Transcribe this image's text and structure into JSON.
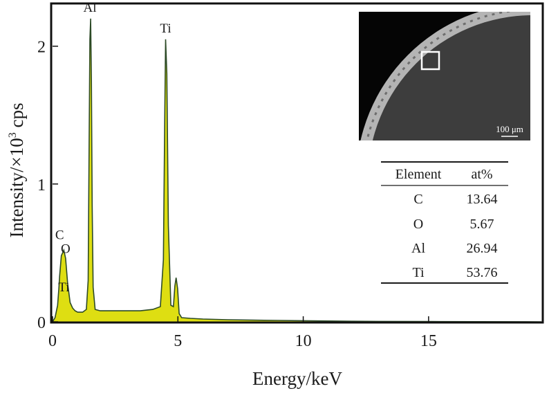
{
  "chart_data": {
    "type": "line",
    "xlabel": "Energy/keV",
    "ylabel_main": "Intensity/×10",
    "ylabel_sup": "3",
    "ylabel_tail": " cps",
    "xlim": [
      0,
      19.5
    ],
    "ylim": [
      0,
      2.3
    ],
    "xticks": [
      0,
      5,
      10,
      15
    ],
    "yticks": [
      0,
      1,
      2
    ],
    "fill_color": "#dede12",
    "line_color": "#2c4a26",
    "grid": false,
    "spectrum": {
      "x": [
        0,
        0.1,
        0.2,
        0.25,
        0.28,
        0.35,
        0.45,
        0.52,
        0.6,
        0.7,
        0.8,
        0.9,
        1.0,
        1.2,
        1.35,
        1.42,
        1.46,
        1.49,
        1.52,
        1.55,
        1.58,
        1.62,
        1.7,
        1.9,
        2.2,
        2.6,
        3.0,
        3.5,
        4.0,
        4.3,
        4.42,
        4.48,
        4.51,
        4.56,
        4.62,
        4.72,
        4.82,
        4.88,
        4.93,
        4.99,
        5.05,
        5.15,
        5.5,
        6.0,
        7.0,
        8.0,
        9.0,
        10.0,
        11.0,
        12.0,
        13.0,
        15.0,
        17.0,
        19.5
      ],
      "y": [
        0.0,
        0.03,
        0.12,
        0.24,
        0.33,
        0.48,
        0.52,
        0.46,
        0.28,
        0.14,
        0.1,
        0.08,
        0.07,
        0.07,
        0.09,
        0.3,
        1.3,
        2.05,
        2.2,
        1.75,
        0.85,
        0.25,
        0.09,
        0.08,
        0.08,
        0.08,
        0.08,
        0.08,
        0.09,
        0.11,
        0.45,
        1.55,
        2.05,
        1.8,
        0.7,
        0.12,
        0.11,
        0.26,
        0.32,
        0.24,
        0.06,
        0.03,
        0.025,
        0.02,
        0.015,
        0.012,
        0.01,
        0.008,
        0.006,
        0.004,
        0.003,
        0.002,
        0.001,
        0.0
      ]
    },
    "peak_labels": [
      {
        "text": "Al",
        "x": 1.49,
        "y": 2.25
      },
      {
        "text": "Ti",
        "x": 4.51,
        "y": 2.1
      },
      {
        "text": "C",
        "x": 0.28,
        "y": 0.6
      },
      {
        "text": "O",
        "x": 0.52,
        "y": 0.5
      },
      {
        "text": "Ti",
        "x": 0.45,
        "y": 0.22
      }
    ]
  },
  "inset": {
    "scale_label": "100 μm"
  },
  "composition_table": {
    "headers": [
      "Element",
      "at%"
    ],
    "rows": [
      [
        "C",
        "13.64"
      ],
      [
        "O",
        "5.67"
      ],
      [
        "Al",
        "26.94"
      ],
      [
        "Ti",
        "53.76"
      ]
    ]
  }
}
